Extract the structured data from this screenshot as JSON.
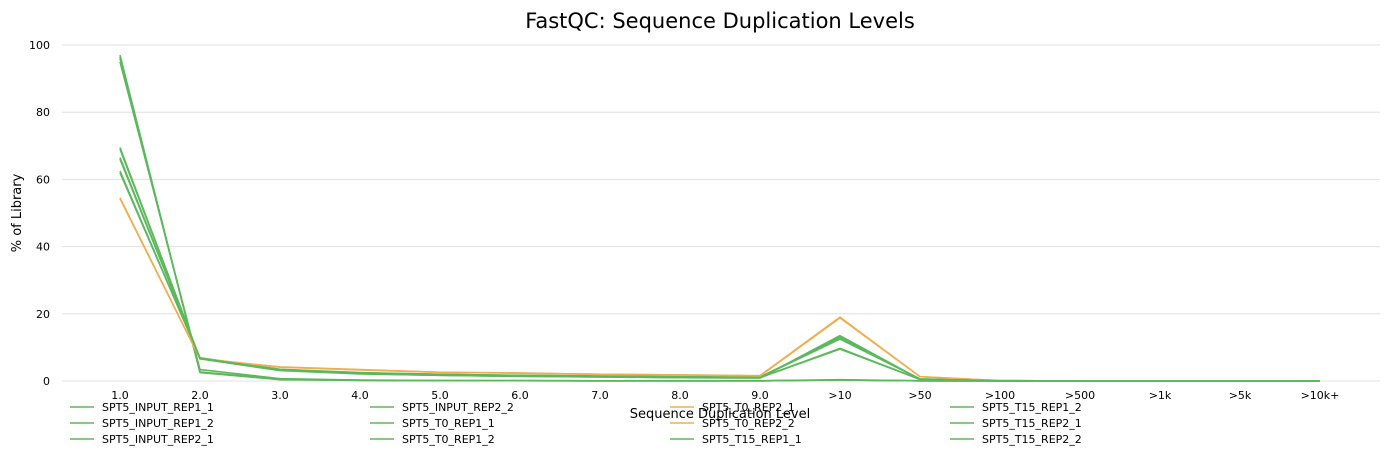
{
  "chart_data": {
    "type": "line",
    "title": "FastQC: Sequence Duplication Levels",
    "xlabel": "Sequence Duplication Level",
    "ylabel": "% of Library",
    "ylim": [
      0,
      100
    ],
    "yticks": [
      0,
      20,
      40,
      60,
      80,
      100
    ],
    "grid": true,
    "categories": [
      "1.0",
      "2.0",
      "3.0",
      "4.0",
      "5.0",
      "6.0",
      "7.0",
      "8.0",
      "9.0",
      ">10",
      ">50",
      ">100",
      ">500",
      ">1k",
      ">5k",
      ">10k+"
    ],
    "colors": {
      "pass": "#5cb85c",
      "warn": "#f0ad4e",
      "grid": "#e0e0e0"
    },
    "series": [
      {
        "name": "SPT5_INPUT_REP1_1",
        "status": "pass",
        "values": [
          96.0,
          2.6,
          0.5,
          0.2,
          0.1,
          0.1,
          0.05,
          0.05,
          0.05,
          0.3,
          0.05,
          0,
          0,
          0,
          0,
          0
        ]
      },
      {
        "name": "SPT5_INPUT_REP1_2",
        "status": "pass",
        "values": [
          95.0,
          3.4,
          0.7,
          0.3,
          0.15,
          0.1,
          0.05,
          0.05,
          0.05,
          0.4,
          0.05,
          0,
          0,
          0,
          0,
          0
        ]
      },
      {
        "name": "SPT5_INPUT_REP2_1",
        "status": "pass",
        "values": [
          97.0,
          2.5,
          0.4,
          0.2,
          0.1,
          0.1,
          0.05,
          0.05,
          0.05,
          0.3,
          0.05,
          0,
          0,
          0,
          0,
          0
        ]
      },
      {
        "name": "SPT5_INPUT_REP2_2",
        "status": "pass",
        "values": [
          96.5,
          2.7,
          0.5,
          0.2,
          0.1,
          0.1,
          0.05,
          0.05,
          0.05,
          0.3,
          0.05,
          0,
          0,
          0,
          0,
          0
        ]
      },
      {
        "name": "SPT5_T0_REP1_1",
        "status": "pass",
        "values": [
          62.5,
          6.8,
          3.4,
          2.4,
          2.0,
          1.6,
          1.4,
          1.3,
          1.1,
          12.5,
          0.6,
          0.1,
          0,
          0,
          0,
          0
        ]
      },
      {
        "name": "SPT5_T0_REP1_2",
        "status": "pass",
        "values": [
          62.0,
          6.9,
          3.5,
          2.5,
          2.0,
          1.7,
          1.5,
          1.3,
          1.2,
          12.8,
          0.6,
          0.1,
          0,
          0,
          0,
          0
        ]
      },
      {
        "name": "SPT5_T0_REP2_1",
        "status": "warn",
        "values": [
          54.5,
          6.6,
          4.2,
          3.4,
          2.6,
          2.4,
          2.0,
          1.8,
          1.6,
          19.0,
          1.3,
          0.1,
          0,
          0,
          0,
          0
        ]
      },
      {
        "name": "SPT5_T0_REP2_2",
        "status": "warn",
        "values": [
          54.3,
          6.7,
          4.1,
          3.3,
          2.6,
          2.3,
          2.0,
          1.8,
          1.5,
          18.8,
          1.3,
          0.1,
          0,
          0,
          0,
          0
        ]
      },
      {
        "name": "SPT5_T15_REP1_1",
        "status": "pass",
        "values": [
          66.5,
          6.7,
          3.3,
          2.3,
          1.8,
          1.5,
          1.3,
          1.1,
          1.0,
          9.5,
          0.5,
          0.05,
          0,
          0,
          0,
          0
        ]
      },
      {
        "name": "SPT5_T15_REP1_2",
        "status": "pass",
        "values": [
          66.0,
          6.8,
          3.3,
          2.3,
          1.8,
          1.5,
          1.3,
          1.1,
          1.0,
          9.7,
          0.5,
          0.05,
          0,
          0,
          0,
          0
        ]
      },
      {
        "name": "SPT5_T15_REP2_1",
        "status": "pass",
        "values": [
          69.5,
          6.6,
          3.1,
          2.1,
          1.7,
          1.4,
          1.2,
          1.0,
          0.9,
          13.5,
          0.5,
          0.05,
          0,
          0,
          0,
          0
        ]
      },
      {
        "name": "SPT5_T15_REP2_2",
        "status": "pass",
        "values": [
          69.0,
          6.7,
          3.2,
          2.2,
          1.7,
          1.4,
          1.2,
          1.0,
          0.9,
          13.3,
          0.5,
          0.05,
          0,
          0,
          0,
          0
        ]
      }
    ]
  }
}
